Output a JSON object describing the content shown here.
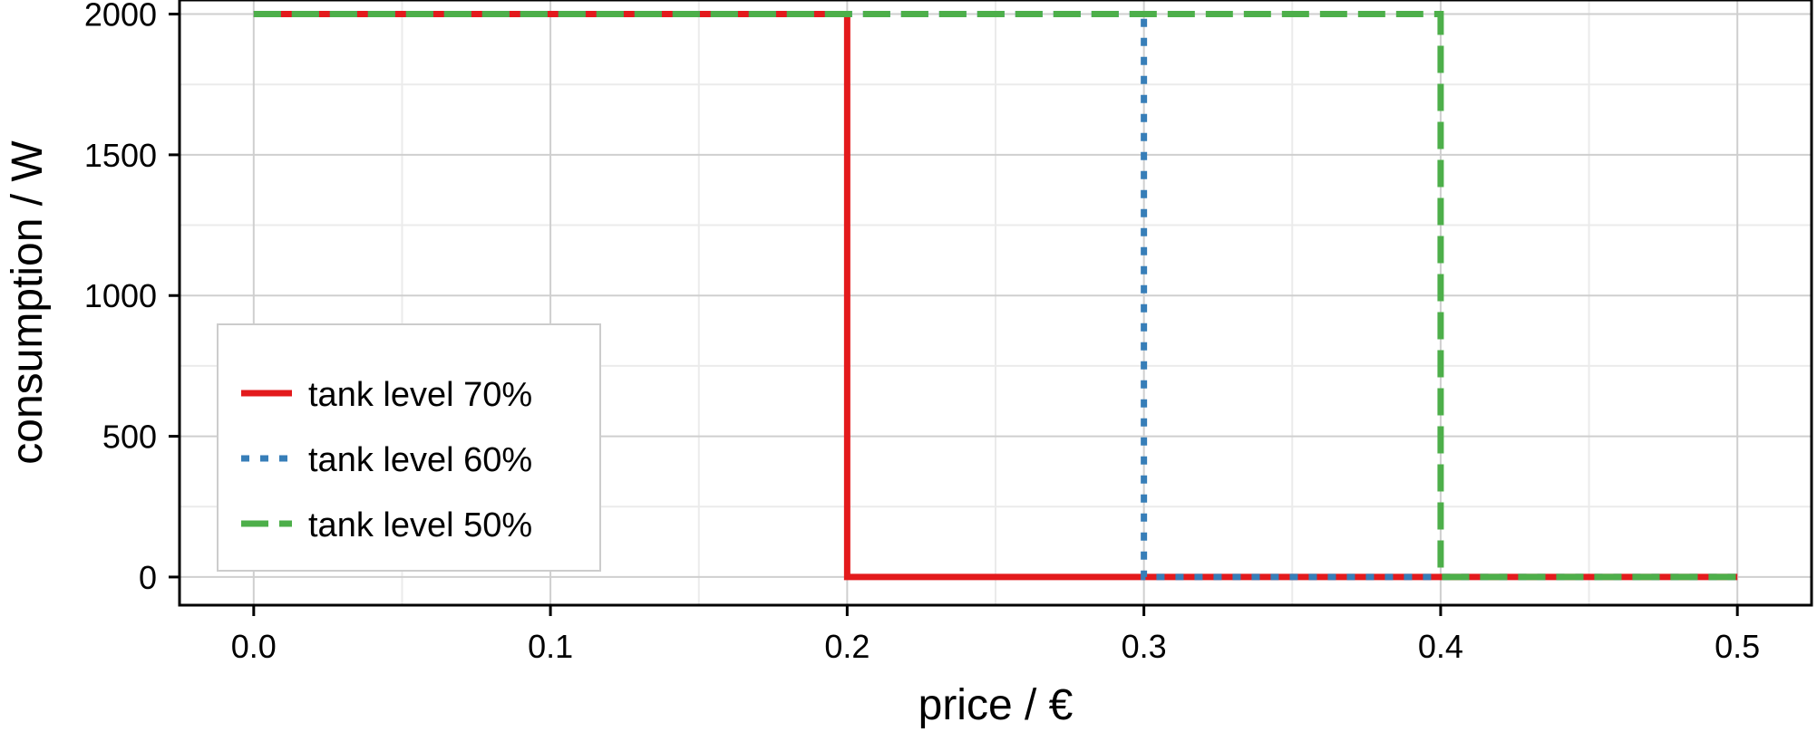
{
  "chart_data": {
    "type": "line",
    "title": "",
    "xlabel": "price / €",
    "ylabel": "consumption / W",
    "xlim": [
      -0.025,
      0.525
    ],
    "ylim": [
      -100,
      2050
    ],
    "x_ticks": [
      0.0,
      0.1,
      0.2,
      0.3,
      0.4,
      0.5
    ],
    "x_tick_labels": [
      "0.0",
      "0.1",
      "0.2",
      "0.3",
      "0.4",
      "0.5"
    ],
    "y_ticks": [
      0,
      500,
      1000,
      1500,
      2000
    ],
    "y_tick_labels": [
      "0",
      "500",
      "1000",
      "1500",
      "2000"
    ],
    "grid": true,
    "legend_position": "lower-left",
    "series": [
      {
        "name": "tank level 70%",
        "color": "#e31a1c",
        "line_style": "solid",
        "x": [
          0.0,
          0.2,
          0.2,
          0.5
        ],
        "y": [
          2000,
          2000,
          0,
          0
        ]
      },
      {
        "name": "tank level 60%",
        "color": "#377eb8",
        "line_style": "dotted",
        "x": [
          0.0,
          0.3,
          0.3,
          0.5
        ],
        "y": [
          2000,
          2000,
          0,
          0
        ]
      },
      {
        "name": "tank level 50%",
        "color": "#4daf4a",
        "line_style": "dashed",
        "x": [
          0.0,
          0.4,
          0.4,
          0.5
        ],
        "y": [
          2000,
          2000,
          0,
          0
        ]
      }
    ]
  }
}
